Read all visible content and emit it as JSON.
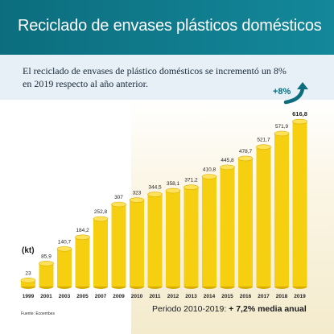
{
  "header": {
    "title": "Reciclado de envases plásticos domésticos"
  },
  "subtitle": "El reciclado de envases de plástico domésticos se incrementó un 8% en 2019 respecto al año anterior.",
  "growth_badge": "+8%",
  "unit_label": "(kt)",
  "source": "Fuente: Ecoembes",
  "period_text": "Periodo 2010-2019:",
  "period_value": "+ 7,2% media anual",
  "colors": {
    "header": "#0c6d7e",
    "bar": "#f5cf10",
    "bar_top": "#ffe25a",
    "bar_shadow": "#d9ad00",
    "accent": "#0c6d7e"
  },
  "icons": [
    "up-arrow-icon"
  ],
  "chart_data": {
    "type": "bar",
    "categories": [
      "1999",
      "2001",
      "2003",
      "2005",
      "2007",
      "2009",
      "2010",
      "2011",
      "2012",
      "2013",
      "2014",
      "2015",
      "2016",
      "2017",
      "2018",
      "2019"
    ],
    "values": [
      23,
      85.9,
      140.7,
      184.2,
      252.8,
      307,
      323,
      344.5,
      358.1,
      371.2,
      410.8,
      445.8,
      478.7,
      521.7,
      571.9,
      616.8
    ],
    "value_labels": [
      "23",
      "85,9",
      "140,7",
      "184,2",
      "252,8",
      "307",
      "323",
      "344,5",
      "358,1",
      "371,2",
      "410,8",
      "445,8",
      "478,7",
      "521,7",
      "571,9",
      "616,8"
    ],
    "ylim": [
      0,
      620
    ],
    "grid": false,
    "legend": "none"
  }
}
